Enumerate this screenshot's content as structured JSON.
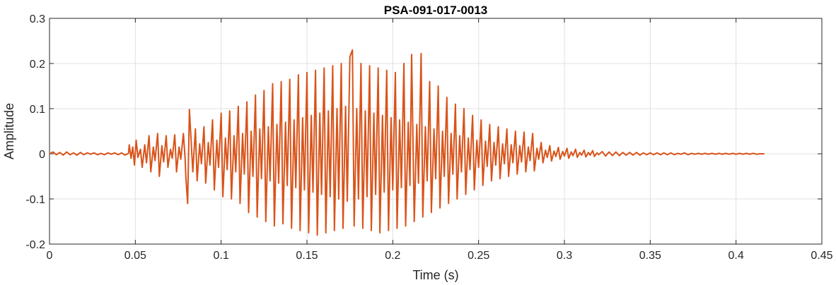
{
  "chart_data": {
    "type": "line",
    "title": "PSA-091-017-0013",
    "xlabel": "Time (s)",
    "ylabel": "Amplitude",
    "xlim": [
      0,
      0.45
    ],
    "ylim": [
      -0.2,
      0.3
    ],
    "xticks": [
      0,
      0.05,
      0.1,
      0.15,
      0.2,
      0.25,
      0.3,
      0.35,
      0.4,
      0.45
    ],
    "xtick_labels": [
      "0",
      "0.05",
      "0.1",
      "0.15",
      "0.2",
      "0.25",
      "0.3",
      "0.35",
      "0.4",
      "0.45"
    ],
    "yticks": [
      -0.2,
      -0.1,
      0,
      0.1,
      0.2,
      0.3
    ],
    "ytick_labels": [
      "-0.2",
      "-0.1",
      "0",
      "0.1",
      "0.2",
      "0.3"
    ],
    "grid": true,
    "legend": "none",
    "series": [
      {
        "color": "#D95319",
        "points": [
          [
            0.0,
            0.0
          ],
          [
            0.002,
            0.004
          ],
          [
            0.004,
            -0.002
          ],
          [
            0.006,
            0.003
          ],
          [
            0.008,
            -0.003
          ],
          [
            0.01,
            0.004
          ],
          [
            0.012,
            -0.002
          ],
          [
            0.014,
            0.002
          ],
          [
            0.016,
            -0.003
          ],
          [
            0.018,
            0.003
          ],
          [
            0.02,
            -0.002
          ],
          [
            0.022,
            0.002
          ],
          [
            0.024,
            -0.001
          ],
          [
            0.026,
            0.002
          ],
          [
            0.028,
            -0.002
          ],
          [
            0.03,
            0.001
          ],
          [
            0.032,
            -0.002
          ],
          [
            0.034,
            0.002
          ],
          [
            0.036,
            -0.001
          ],
          [
            0.038,
            0.002
          ],
          [
            0.04,
            -0.002
          ],
          [
            0.042,
            0.002
          ],
          [
            0.044,
            -0.003
          ],
          [
            0.046,
            0.001
          ],
          [
            0.0465,
            0.02
          ],
          [
            0.0475,
            -0.01
          ],
          [
            0.0485,
            0.015
          ],
          [
            0.0495,
            -0.025
          ],
          [
            0.0505,
            0.03
          ],
          [
            0.0515,
            -0.008
          ],
          [
            0.053,
            0.01
          ],
          [
            0.054,
            -0.03
          ],
          [
            0.0555,
            0.02
          ],
          [
            0.0565,
            -0.02
          ],
          [
            0.058,
            0.04
          ],
          [
            0.059,
            -0.04
          ],
          [
            0.0605,
            0.015
          ],
          [
            0.0615,
            -0.015
          ],
          [
            0.063,
            0.045
          ],
          [
            0.064,
            -0.05
          ],
          [
            0.0655,
            0.018
          ],
          [
            0.0665,
            -0.018
          ],
          [
            0.068,
            0.04
          ],
          [
            0.069,
            -0.03
          ],
          [
            0.0705,
            0.01
          ],
          [
            0.0715,
            -0.01
          ],
          [
            0.073,
            0.042
          ],
          [
            0.074,
            -0.04
          ],
          [
            0.0755,
            0.015
          ],
          [
            0.0765,
            -0.012
          ],
          [
            0.078,
            0.045
          ],
          [
            0.079,
            -0.01
          ],
          [
            0.0795,
            -0.055
          ],
          [
            0.0805,
            -0.11
          ],
          [
            0.0815,
            0.098
          ],
          [
            0.0825,
            0.03
          ],
          [
            0.0835,
            -0.04
          ],
          [
            0.085,
            0.055
          ],
          [
            0.086,
            -0.06
          ],
          [
            0.0875,
            0.022
          ],
          [
            0.0885,
            -0.022
          ],
          [
            0.09,
            0.06
          ],
          [
            0.091,
            -0.065
          ],
          [
            0.0925,
            0.025
          ],
          [
            0.0935,
            -0.025
          ],
          [
            0.095,
            0.075
          ],
          [
            0.096,
            -0.08
          ],
          [
            0.0975,
            0.03
          ],
          [
            0.0985,
            -0.03
          ],
          [
            0.1,
            0.09
          ],
          [
            0.101,
            -0.095
          ],
          [
            0.1025,
            0.035
          ],
          [
            0.1035,
            -0.035
          ],
          [
            0.105,
            0.095
          ],
          [
            0.106,
            -0.1
          ],
          [
            0.1075,
            0.04
          ],
          [
            0.1085,
            -0.04
          ],
          [
            0.11,
            0.105
          ],
          [
            0.111,
            -0.11
          ],
          [
            0.1125,
            0.045
          ],
          [
            0.1135,
            -0.045
          ],
          [
            0.115,
            0.115
          ],
          [
            0.116,
            -0.13
          ],
          [
            0.1175,
            0.05
          ],
          [
            0.1185,
            -0.05
          ],
          [
            0.12,
            0.13
          ],
          [
            0.121,
            -0.14
          ],
          [
            0.1225,
            0.055
          ],
          [
            0.1235,
            -0.055
          ],
          [
            0.125,
            0.14
          ],
          [
            0.126,
            -0.15
          ],
          [
            0.1275,
            0.06
          ],
          [
            0.1285,
            -0.06
          ],
          [
            0.13,
            0.155
          ],
          [
            0.131,
            -0.16
          ],
          [
            0.1325,
            0.065
          ],
          [
            0.1335,
            -0.065
          ],
          [
            0.135,
            0.16
          ],
          [
            0.136,
            -0.155
          ],
          [
            0.1375,
            0.07
          ],
          [
            0.1385,
            -0.07
          ],
          [
            0.14,
            0.165
          ],
          [
            0.141,
            -0.165
          ],
          [
            0.1425,
            0.075
          ],
          [
            0.1435,
            -0.075
          ],
          [
            0.145,
            0.175
          ],
          [
            0.146,
            -0.17
          ],
          [
            0.1475,
            0.08
          ],
          [
            0.1485,
            -0.08
          ],
          [
            0.15,
            0.18
          ],
          [
            0.151,
            -0.175
          ],
          [
            0.1525,
            0.085
          ],
          [
            0.1535,
            -0.085
          ],
          [
            0.155,
            0.185
          ],
          [
            0.156,
            -0.18
          ],
          [
            0.1575,
            0.09
          ],
          [
            0.1585,
            -0.09
          ],
          [
            0.16,
            0.19
          ],
          [
            0.161,
            -0.175
          ],
          [
            0.1625,
            0.095
          ],
          [
            0.1635,
            -0.095
          ],
          [
            0.165,
            0.195
          ],
          [
            0.166,
            -0.17
          ],
          [
            0.1675,
            0.1
          ],
          [
            0.1685,
            -0.1
          ],
          [
            0.17,
            0.2
          ],
          [
            0.171,
            -0.165
          ],
          [
            0.1725,
            0.105
          ],
          [
            0.1735,
            -0.105
          ],
          [
            0.175,
            0.215
          ],
          [
            0.1765,
            0.23
          ],
          [
            0.1775,
            -0.16
          ],
          [
            0.179,
            0.1
          ],
          [
            0.18,
            -0.1
          ],
          [
            0.1815,
            0.2
          ],
          [
            0.1825,
            -0.165
          ],
          [
            0.184,
            0.095
          ],
          [
            0.185,
            -0.095
          ],
          [
            0.1865,
            0.195
          ],
          [
            0.1875,
            -0.17
          ],
          [
            0.189,
            0.09
          ],
          [
            0.19,
            -0.09
          ],
          [
            0.1915,
            0.19
          ],
          [
            0.1925,
            -0.175
          ],
          [
            0.194,
            0.085
          ],
          [
            0.195,
            -0.085
          ],
          [
            0.1965,
            0.185
          ],
          [
            0.1975,
            -0.17
          ],
          [
            0.199,
            0.08
          ],
          [
            0.2,
            -0.08
          ],
          [
            0.2015,
            0.18
          ],
          [
            0.2025,
            -0.165
          ],
          [
            0.204,
            0.075
          ],
          [
            0.205,
            -0.075
          ],
          [
            0.2065,
            0.2
          ],
          [
            0.2075,
            -0.16
          ],
          [
            0.209,
            0.07
          ],
          [
            0.21,
            -0.07
          ],
          [
            0.211,
            0.22
          ],
          [
            0.2125,
            -0.15
          ],
          [
            0.214,
            0.065
          ],
          [
            0.215,
            -0.065
          ],
          [
            0.2165,
            0.222
          ],
          [
            0.2175,
            -0.14
          ],
          [
            0.219,
            0.06
          ],
          [
            0.22,
            -0.06
          ],
          [
            0.2215,
            0.16
          ],
          [
            0.2225,
            -0.13
          ],
          [
            0.224,
            0.055
          ],
          [
            0.225,
            -0.055
          ],
          [
            0.2265,
            0.15
          ],
          [
            0.2275,
            -0.12
          ],
          [
            0.229,
            0.05
          ],
          [
            0.23,
            -0.05
          ],
          [
            0.2315,
            0.125
          ],
          [
            0.2325,
            -0.11
          ],
          [
            0.234,
            0.045
          ],
          [
            0.235,
            -0.045
          ],
          [
            0.2365,
            0.11
          ],
          [
            0.2375,
            -0.1
          ],
          [
            0.239,
            0.04
          ],
          [
            0.24,
            -0.04
          ],
          [
            0.2415,
            0.1
          ],
          [
            0.2425,
            -0.09
          ],
          [
            0.244,
            0.035
          ],
          [
            0.245,
            -0.035
          ],
          [
            0.2465,
            0.085
          ],
          [
            0.2475,
            -0.08
          ],
          [
            0.249,
            0.03
          ],
          [
            0.25,
            -0.03
          ],
          [
            0.2515,
            0.075
          ],
          [
            0.2525,
            -0.07
          ],
          [
            0.254,
            0.028
          ],
          [
            0.255,
            -0.028
          ],
          [
            0.2565,
            0.065
          ],
          [
            0.2575,
            -0.06
          ],
          [
            0.259,
            0.025
          ],
          [
            0.26,
            -0.025
          ],
          [
            0.2615,
            0.06
          ],
          [
            0.2625,
            -0.055
          ],
          [
            0.264,
            0.022
          ],
          [
            0.265,
            -0.022
          ],
          [
            0.2665,
            0.055
          ],
          [
            0.2675,
            -0.05
          ],
          [
            0.269,
            0.02
          ],
          [
            0.27,
            -0.02
          ],
          [
            0.2715,
            0.05
          ],
          [
            0.2725,
            -0.045
          ],
          [
            0.274,
            0.018
          ],
          [
            0.275,
            -0.018
          ],
          [
            0.2765,
            0.048
          ],
          [
            0.2775,
            -0.04
          ],
          [
            0.279,
            0.015
          ],
          [
            0.28,
            -0.015
          ],
          [
            0.2815,
            0.045
          ],
          [
            0.2825,
            -0.038
          ],
          [
            0.284,
            0.012
          ],
          [
            0.285,
            -0.012
          ],
          [
            0.2865,
            0.025
          ],
          [
            0.2875,
            -0.02
          ],
          [
            0.289,
            0.008
          ],
          [
            0.29,
            -0.008
          ],
          [
            0.2915,
            0.018
          ],
          [
            0.2925,
            -0.016
          ],
          [
            0.294,
            0.006
          ],
          [
            0.295,
            -0.006
          ],
          [
            0.2965,
            0.014
          ],
          [
            0.2975,
            -0.012
          ],
          [
            0.299,
            0.005
          ],
          [
            0.3,
            -0.005
          ],
          [
            0.3015,
            0.012
          ],
          [
            0.3025,
            -0.01
          ],
          [
            0.304,
            0.004
          ],
          [
            0.305,
            -0.004
          ],
          [
            0.3065,
            0.01
          ],
          [
            0.3075,
            -0.008
          ],
          [
            0.309,
            0.003
          ],
          [
            0.31,
            -0.003
          ],
          [
            0.3115,
            0.008
          ],
          [
            0.3125,
            -0.007
          ],
          [
            0.314,
            0.003
          ],
          [
            0.315,
            -0.003
          ],
          [
            0.3165,
            0.007
          ],
          [
            0.3175,
            -0.006
          ],
          [
            0.319,
            0.002
          ],
          [
            0.32,
            -0.002
          ],
          [
            0.322,
            0.005
          ],
          [
            0.324,
            -0.005
          ],
          [
            0.326,
            0.004
          ],
          [
            0.328,
            -0.004
          ],
          [
            0.33,
            0.004
          ],
          [
            0.332,
            -0.004
          ],
          [
            0.334,
            0.003
          ],
          [
            0.336,
            -0.003
          ],
          [
            0.338,
            0.003
          ],
          [
            0.34,
            -0.003
          ],
          [
            0.342,
            0.003
          ],
          [
            0.344,
            -0.003
          ],
          [
            0.346,
            0.002
          ],
          [
            0.348,
            -0.002
          ],
          [
            0.35,
            0.002
          ],
          [
            0.352,
            -0.002
          ],
          [
            0.354,
            0.002
          ],
          [
            0.356,
            -0.002
          ],
          [
            0.358,
            0.002
          ],
          [
            0.36,
            -0.002
          ],
          [
            0.362,
            0.002
          ],
          [
            0.364,
            -0.002
          ],
          [
            0.366,
            0.001
          ],
          [
            0.368,
            -0.001
          ],
          [
            0.37,
            0.002
          ],
          [
            0.372,
            -0.002
          ],
          [
            0.374,
            0.001
          ],
          [
            0.376,
            -0.001
          ],
          [
            0.378,
            0.001
          ],
          [
            0.38,
            -0.001
          ],
          [
            0.382,
            0.001
          ],
          [
            0.384,
            -0.001
          ],
          [
            0.386,
            0.001
          ],
          [
            0.388,
            -0.001
          ],
          [
            0.39,
            0.001
          ],
          [
            0.392,
            -0.001
          ],
          [
            0.394,
            0.001
          ],
          [
            0.396,
            -0.001
          ],
          [
            0.398,
            0.001
          ],
          [
            0.4,
            -0.001
          ],
          [
            0.402,
            0.001
          ],
          [
            0.404,
            -0.001
          ],
          [
            0.406,
            0.001
          ],
          [
            0.408,
            -0.001
          ],
          [
            0.41,
            0.001
          ],
          [
            0.412,
            -0.001
          ],
          [
            0.414,
            0.0
          ],
          [
            0.4165,
            0.0
          ]
        ]
      }
    ]
  }
}
